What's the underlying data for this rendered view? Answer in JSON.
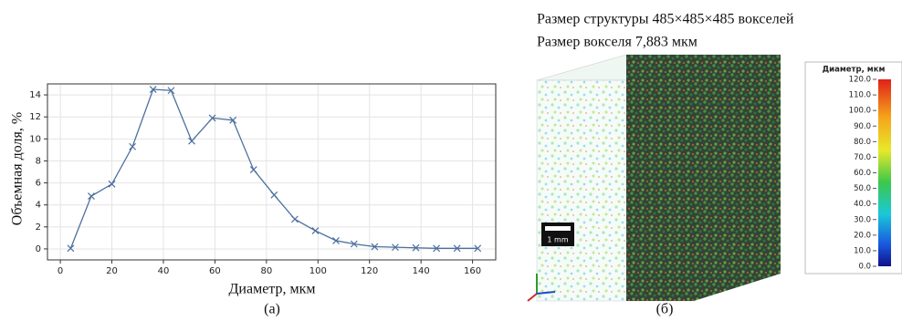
{
  "chart_data": {
    "type": "line",
    "xlabel": "Диаметр, мкм",
    "ylabel": "Объемная доля, %",
    "caption": "(а)",
    "x": [
      4,
      12,
      20,
      28,
      36,
      43,
      51,
      59,
      67,
      75,
      83,
      91,
      99,
      107,
      114,
      122,
      130,
      138,
      146,
      154,
      162
    ],
    "series": [
      {
        "color": "#4c6f9e",
        "values": [
          0.05,
          4.8,
          5.9,
          9.3,
          14.5,
          14.4,
          9.8,
          11.9,
          11.7,
          7.2,
          4.9,
          2.7,
          1.65,
          0.75,
          0.45,
          0.2,
          0.15,
          0.1,
          0.05,
          0.05,
          0.05
        ]
      }
    ],
    "xlim": [
      -5,
      169
    ],
    "ylim": [
      -1,
      15
    ],
    "xticks": [
      0,
      20,
      40,
      60,
      80,
      100,
      120,
      140,
      160
    ],
    "yticks": [
      0,
      2,
      4,
      6,
      8,
      10,
      12,
      14
    ],
    "grid": true
  },
  "panel_b": {
    "title_lines": [
      "Размер структуры 485×485×485 вокселей",
      "Размер вокселя 7,883 мкм"
    ],
    "scale_bar": "1 mm",
    "caption": "(б)",
    "colorbar": {
      "title": "Диаметр, мкм",
      "lim": [
        0,
        120
      ],
      "ticks": [
        {
          "value": 120,
          "label": "120.0"
        },
        {
          "value": 110,
          "label": "110.0"
        },
        {
          "value": 100,
          "label": "100.0"
        },
        {
          "value": 90,
          "label": "90.0"
        },
        {
          "value": 80,
          "label": "80.0"
        },
        {
          "value": 70,
          "label": "70.0"
        },
        {
          "value": 60,
          "label": "60.0"
        },
        {
          "value": 50,
          "label": "50.0"
        },
        {
          "value": 40,
          "label": "40.0"
        },
        {
          "value": 30,
          "label": "30.0"
        },
        {
          "value": 20,
          "label": "20.0"
        },
        {
          "value": 10,
          "label": "10.0"
        },
        {
          "value": 0,
          "label": "0.0"
        }
      ]
    }
  }
}
